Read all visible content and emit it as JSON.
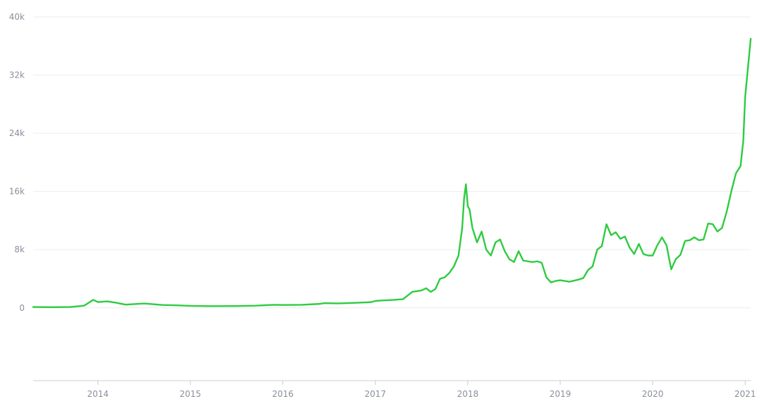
{
  "chart_data": {
    "type": "line",
    "title": "",
    "xlabel": "",
    "ylabel": "",
    "ylim": [
      -10000,
      40000
    ],
    "xlim": [
      2013.3,
      2021.06
    ],
    "grid": true,
    "legend": "none",
    "colors": {
      "line": "#2ecc40",
      "grid": "#eeeeee",
      "axis": "#c8ccd6",
      "tick_text": "#8a8f9c"
    },
    "y_ticks": [
      {
        "value": 40000,
        "label": "40k"
      },
      {
        "value": 32000,
        "label": "32k"
      },
      {
        "value": 24000,
        "label": "24k"
      },
      {
        "value": 16000,
        "label": "16k"
      },
      {
        "value": 8000,
        "label": "8k"
      },
      {
        "value": 0,
        "label": "0"
      }
    ],
    "x_ticks": [
      {
        "value": 2014,
        "label": "2014"
      },
      {
        "value": 2015,
        "label": "2015"
      },
      {
        "value": 2016,
        "label": "2016"
      },
      {
        "value": 2017,
        "label": "2017"
      },
      {
        "value": 2018,
        "label": "2018"
      },
      {
        "value": 2019,
        "label": "2019"
      },
      {
        "value": 2020,
        "label": "2020"
      },
      {
        "value": 2021,
        "label": "2021"
      }
    ],
    "series": [
      {
        "x": [
          2013.3,
          2013.5,
          2013.7,
          2013.85,
          2013.9,
          2013.95,
          2014.0,
          2014.1,
          2014.2,
          2014.3,
          2014.5,
          2014.7,
          2014.9,
          2015.0,
          2015.2,
          2015.5,
          2015.7,
          2015.9,
          2016.0,
          2016.2,
          2016.4,
          2016.45,
          2016.6,
          2016.8,
          2016.95,
          2017.0,
          2017.05,
          2017.2,
          2017.3,
          2017.4,
          2017.5,
          2017.55,
          2017.6,
          2017.65,
          2017.7,
          2017.75,
          2017.8,
          2017.85,
          2017.9,
          2017.94,
          2017.96,
          2017.98,
          2018.0,
          2018.02,
          2018.05,
          2018.1,
          2018.15,
          2018.2,
          2018.25,
          2018.3,
          2018.35,
          2018.4,
          2018.45,
          2018.5,
          2018.55,
          2018.6,
          2018.65,
          2018.7,
          2018.75,
          2018.8,
          2018.85,
          2018.9,
          2018.95,
          2019.0,
          2019.1,
          2019.2,
          2019.25,
          2019.3,
          2019.35,
          2019.4,
          2019.45,
          2019.5,
          2019.55,
          2019.6,
          2019.65,
          2019.7,
          2019.75,
          2019.8,
          2019.85,
          2019.9,
          2019.95,
          2020.0,
          2020.05,
          2020.1,
          2020.15,
          2020.2,
          2020.25,
          2020.3,
          2020.35,
          2020.4,
          2020.45,
          2020.5,
          2020.55,
          2020.6,
          2020.65,
          2020.7,
          2020.75,
          2020.8,
          2020.85,
          2020.9,
          2020.95,
          2020.98,
          2021.0,
          2021.03,
          2021.06
        ],
        "values": [
          120,
          100,
          120,
          300,
          700,
          1100,
          800,
          900,
          700,
          450,
          600,
          400,
          330,
          280,
          240,
          250,
          300,
          420,
          400,
          420,
          550,
          650,
          620,
          700,
          780,
          950,
          1000,
          1100,
          1200,
          2200,
          2400,
          2700,
          2200,
          2600,
          4000,
          4200,
          4800,
          5700,
          7200,
          11000,
          15000,
          17000,
          14000,
          13500,
          11000,
          9000,
          10500,
          8000,
          7200,
          9000,
          9400,
          7800,
          6700,
          6300,
          7800,
          6500,
          6400,
          6300,
          6400,
          6200,
          4200,
          3500,
          3700,
          3800,
          3600,
          3900,
          4100,
          5200,
          5700,
          8000,
          8500,
          11500,
          10000,
          10400,
          9500,
          9800,
          8300,
          7400,
          8800,
          7400,
          7200,
          7200,
          8600,
          9700,
          8600,
          5300,
          6700,
          7300,
          9200,
          9300,
          9700,
          9300,
          9400,
          11600,
          11500,
          10500,
          11000,
          13200,
          16000,
          18500,
          19500,
          23000,
          29000,
          33000,
          37000
        ]
      }
    ]
  }
}
